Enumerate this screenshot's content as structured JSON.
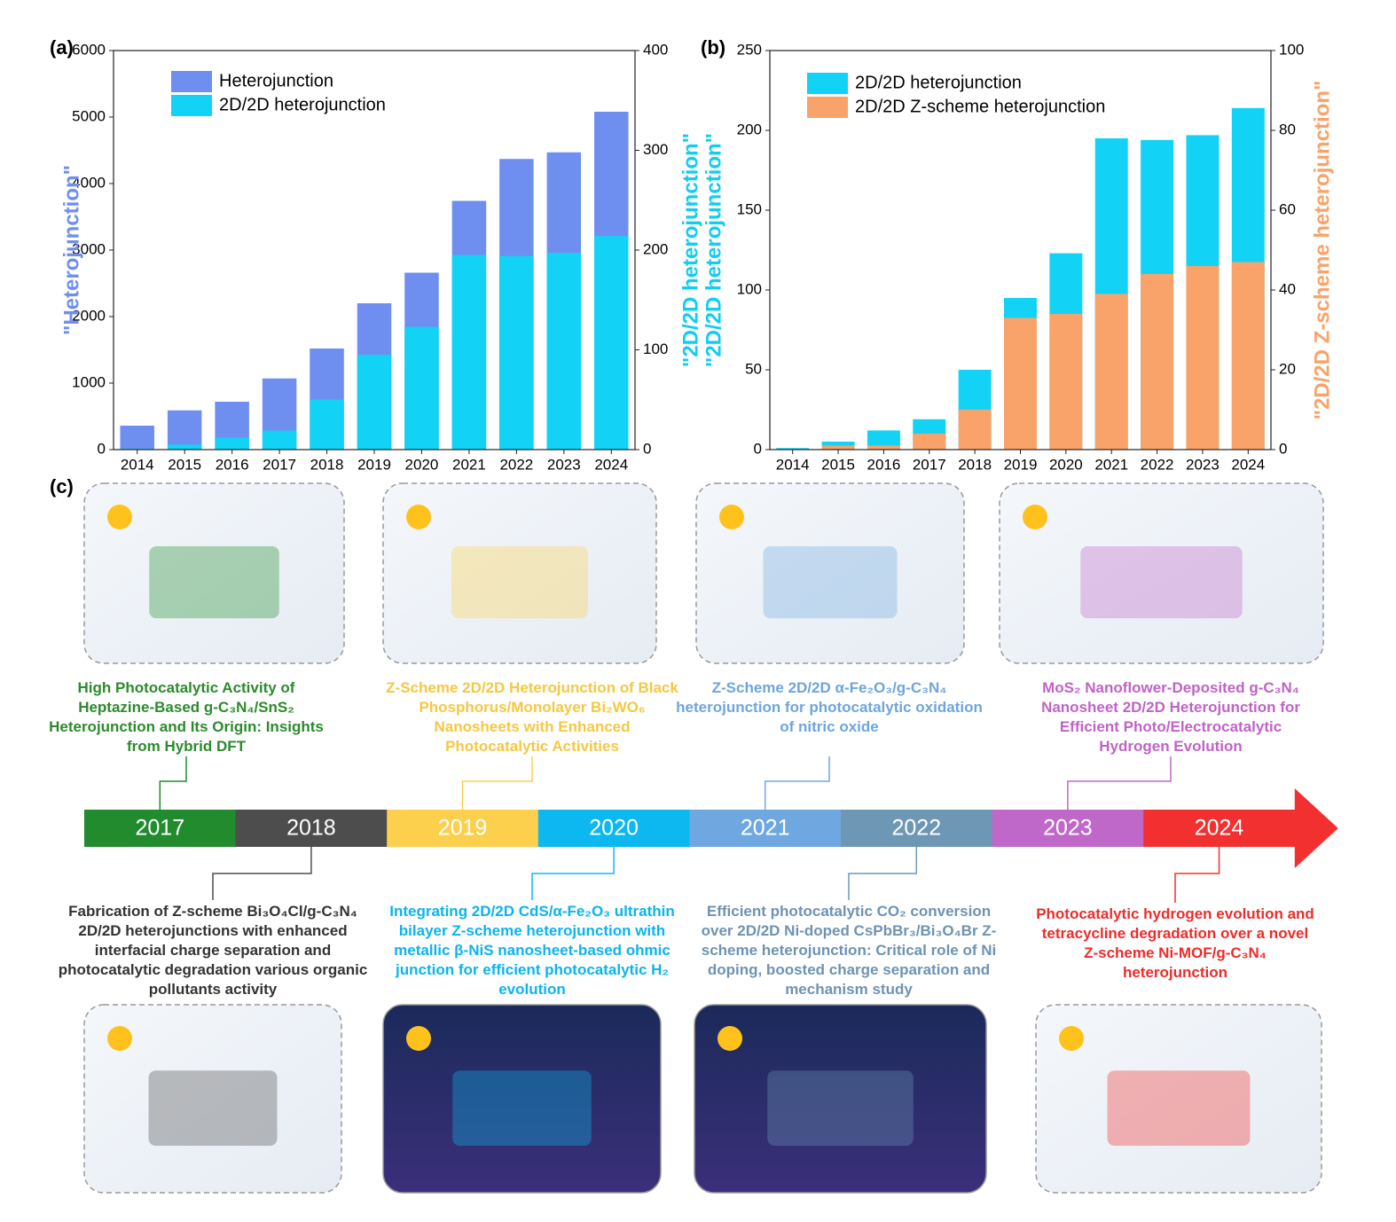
{
  "chart_data": [
    {
      "type": "bar",
      "panel_label": "(a)",
      "categories": [
        "2014",
        "2015",
        "2016",
        "2017",
        "2018",
        "2019",
        "2020",
        "2021",
        "2022",
        "2023",
        "2024"
      ],
      "ylabel": "\"Heterojunction\"",
      "ylabel_color": "#6f8ff0",
      "y2label": "\"2D/2D heterojunction\"",
      "y2label_color": "#12cdf2",
      "ylim": [
        0,
        6000
      ],
      "yticks": [
        0,
        1000,
        2000,
        3000,
        4000,
        5000,
        6000
      ],
      "y2lim": [
        0,
        400
      ],
      "y2ticks": [
        0,
        100,
        200,
        300,
        400
      ],
      "legend": "upper left",
      "series": [
        {
          "name": "Heterojunction",
          "color": "#6f8ff0",
          "values": [
            360,
            590,
            720,
            1070,
            1520,
            2200,
            2660,
            3740,
            4370,
            4470,
            5080
          ]
        },
        {
          "name": "2D/2D heterojunction",
          "color": "#12d3f5",
          "axis": "y2",
          "values": [
            1,
            5,
            12,
            19,
            50,
            95,
            123,
            195,
            194,
            197,
            214
          ]
        }
      ]
    },
    {
      "type": "bar",
      "panel_label": "(b)",
      "categories": [
        "2014",
        "2015",
        "2016",
        "2017",
        "2018",
        "2019",
        "2020",
        "2021",
        "2022",
        "2023",
        "2024"
      ],
      "y2label": "\"2D/2D Z-scheme heterojunction\"",
      "y2label_color": "#f9a36a",
      "ylim": [
        0,
        250
      ],
      "yticks": [
        0,
        50,
        100,
        150,
        200,
        250
      ],
      "y2lim": [
        0,
        100
      ],
      "y2ticks": [
        0,
        20,
        40,
        60,
        80,
        100
      ],
      "legend": "upper left",
      "series": [
        {
          "name": "2D/2D heterojunction",
          "color": "#12d3f5",
          "values": [
            1,
            5,
            12,
            19,
            50,
            95,
            123,
            195,
            194,
            197,
            214
          ]
        },
        {
          "name": "2D/2D Z-scheme heterojunction",
          "color": "#f9a36a",
          "axis": "y2",
          "values": [
            0,
            1,
            1,
            4,
            10,
            33,
            34,
            39,
            44,
            46,
            47
          ]
        }
      ]
    }
  ],
  "timeline": {
    "panel_label": "(c)",
    "items": [
      {
        "year": "2017",
        "color": "#228b2e",
        "text_color": "#2d8a2d",
        "title": "High Photocatalytic Activity of Heptazine-Based g-C₃N₄/SnS₂ Heterojunction and Its Origin: Insights from Hybrid DFT"
      },
      {
        "year": "2018",
        "color": "#4d4d4d",
        "text_color": "#333333",
        "title": "Fabrication of Z-scheme Bi₃O₄Cl/g-C₃N₄ 2D/2D heterojunctions with enhanced interfacial charge separation and photocatalytic degradation various organic pollutants activity"
      },
      {
        "year": "2019",
        "color": "#fcd04d",
        "text_color": "#f5c842",
        "title": "Z-Scheme 2D/2D Heterojunction of Black Phosphorus/Monolayer Bi₂WO₆ Nanosheets with Enhanced Photocatalytic Activities"
      },
      {
        "year": "2020",
        "color": "#0cb8ef",
        "text_color": "#0ab4ee",
        "title": "Integrating 2D/2D CdS/α-Fe₂O₃ ultrathin bilayer Z-scheme heterojunction with metallic β-NiS nanosheet-based ohmic junction for efficient photocatalytic H₂ evolution"
      },
      {
        "year": "2021",
        "color": "#6fa8e0",
        "text_color": "#6ea5dc",
        "title": "Z-Scheme 2D/2D α-Fe₂O₃/g-C₃N₄ heterojunction for photocatalytic oxidation of nitric oxide"
      },
      {
        "year": "2022",
        "color": "#6e97b6",
        "text_color": "#6d93b3",
        "title": "Efficient photocatalytic CO₂ conversion over 2D/2D Ni-doped CsPbBr₃/Bi₃O₄Br Z-scheme heterojunction: Critical role of Ni doping, boosted charge separation and mechanism study"
      },
      {
        "year": "2023",
        "color": "#c068c9",
        "text_color": "#c063c6",
        "title": "MoS₂ Nanoflower-Deposited g-C₃N₄ Nanosheet 2D/2D Heterojunction for Efficient Photo/Electrocatalytic Hydrogen Evolution"
      },
      {
        "year": "2024",
        "color": "#f2302f",
        "text_color": "#ee2b2b",
        "title": "Photocatalytic hydrogen evolution and tetracycline degradation over a novel Z-scheme Ni-MOF/g-C₃N₄ heterojunction"
      }
    ]
  }
}
